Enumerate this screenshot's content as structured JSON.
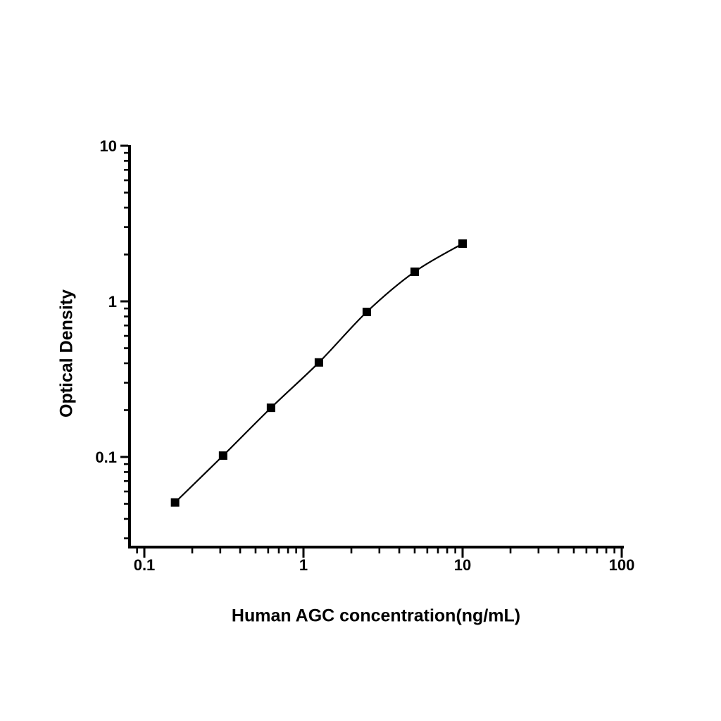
{
  "chart_data": {
    "type": "line",
    "series_name": "elisa-standard-curve",
    "x": [
      0.156,
      0.3125,
      0.625,
      1.25,
      2.5,
      5,
      10
    ],
    "y": [
      0.051,
      0.102,
      0.207,
      0.405,
      0.855,
      1.55,
      2.35
    ],
    "xlabel": "Human AGC concentration(ng/mL)",
    "ylabel": "Optical Density",
    "x_scale": "log",
    "y_scale": "log",
    "x_ticks_major": [
      0.1,
      1,
      10,
      100
    ],
    "x_tick_labels": [
      "0.1",
      "1",
      "10",
      "100"
    ],
    "y_ticks_major": [
      0.1,
      1,
      10
    ],
    "y_tick_labels": [
      "0.1",
      "1",
      "10"
    ],
    "x_range": [
      0.08,
      100
    ],
    "y_range": [
      0.0265,
      10
    ],
    "grid": false,
    "legend": "none",
    "marker": "filled-square",
    "marker_color": "#000000",
    "line_color": "#000000",
    "axis_color": "#000000",
    "background_color": "#ffffff"
  }
}
